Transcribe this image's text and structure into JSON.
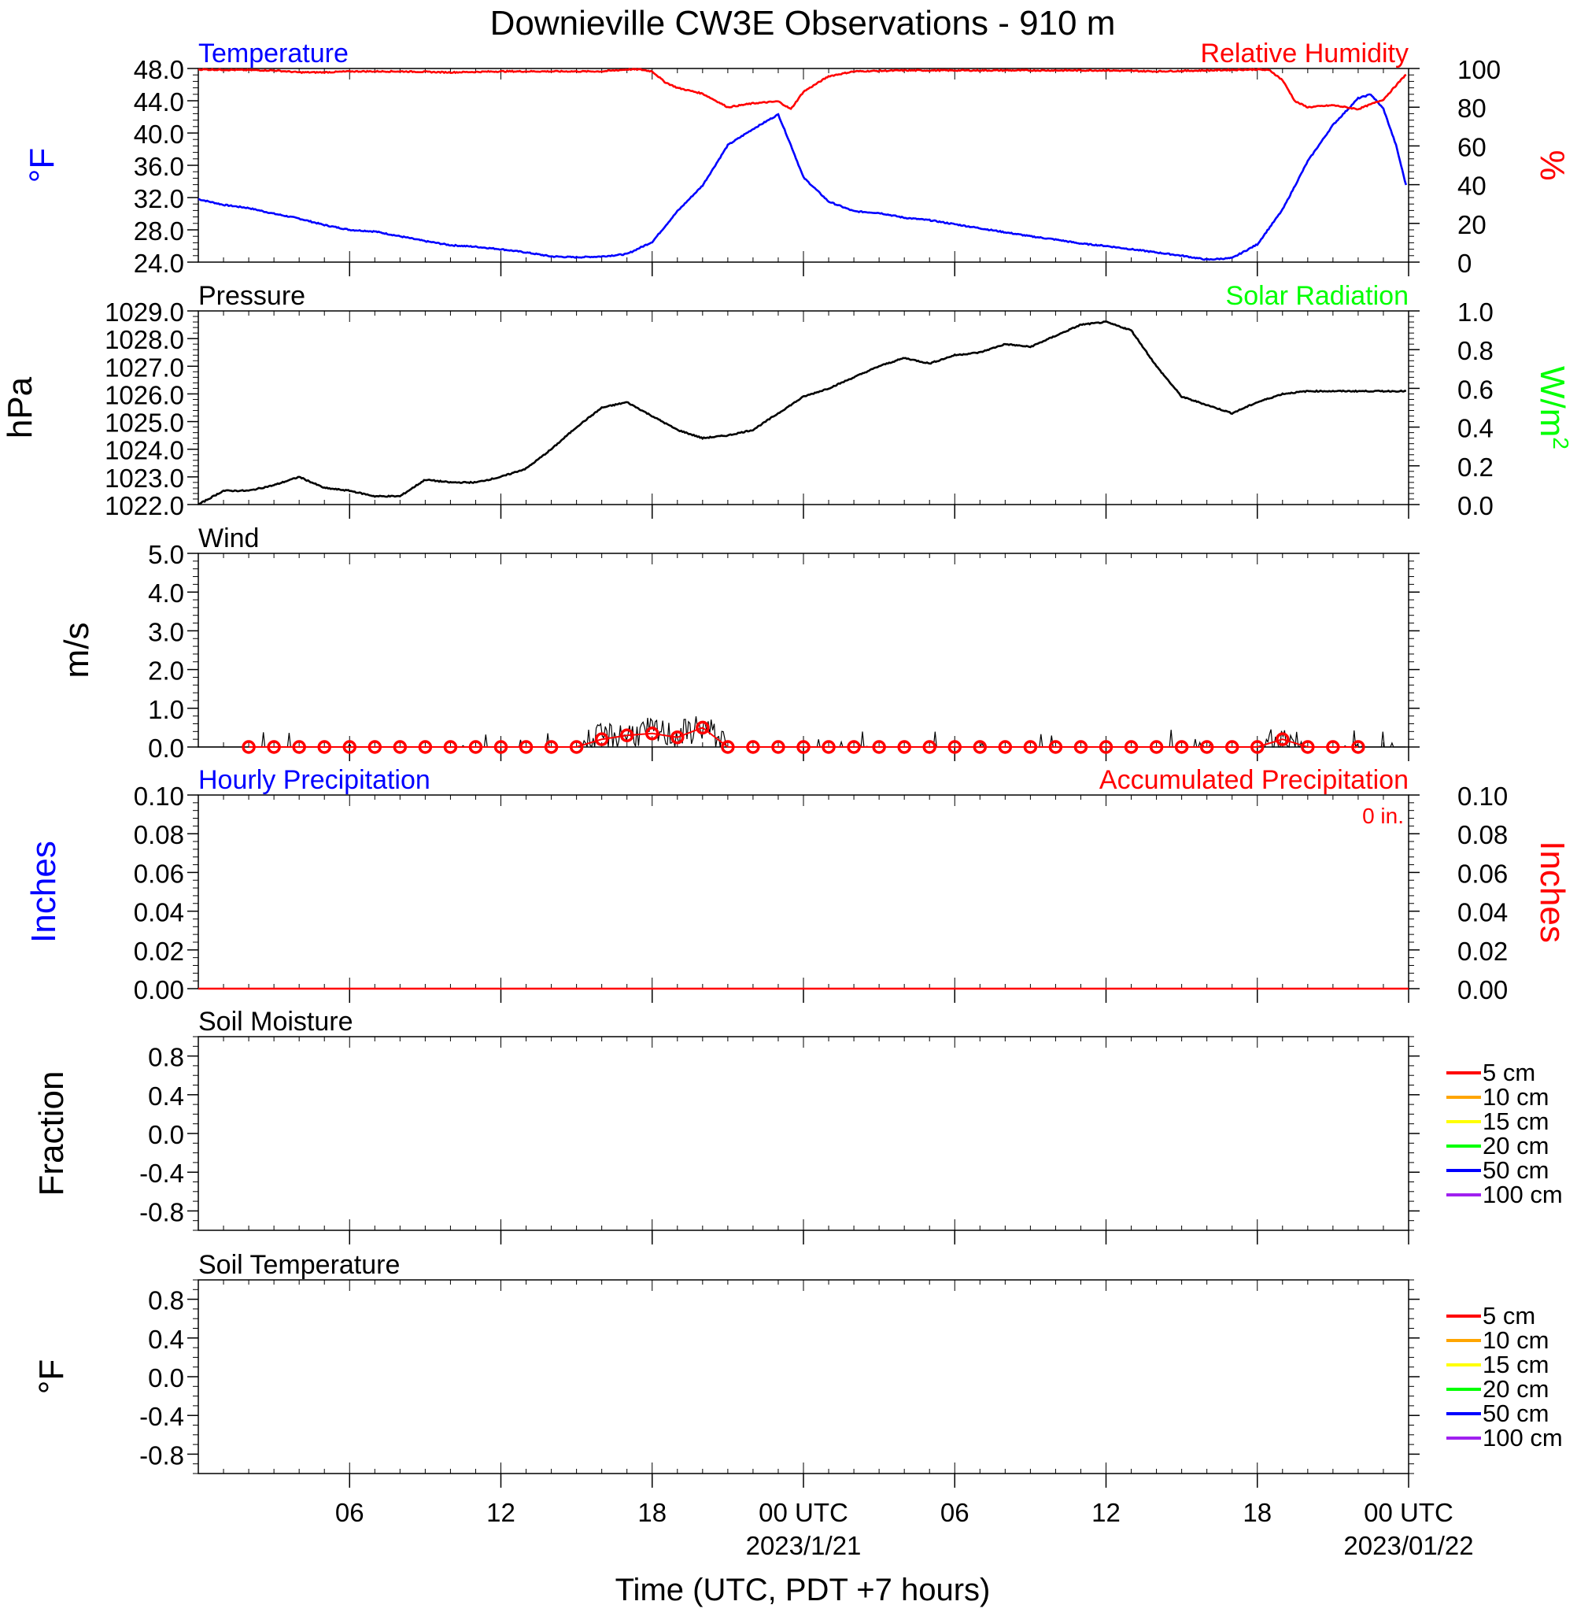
{
  "title": "Downieville CW3E Observations - 910 m",
  "xlabel": "Time (UTC, PDT +7 hours)",
  "x_ticks": [
    {
      "hour": 6,
      "label": "06",
      "sub": ""
    },
    {
      "hour": 12,
      "label": "12",
      "sub": ""
    },
    {
      "hour": 18,
      "label": "18",
      "sub": ""
    },
    {
      "hour": 24,
      "label": "00 UTC",
      "sub": "2023/1/21"
    },
    {
      "hour": 30,
      "label": "06",
      "sub": ""
    },
    {
      "hour": 36,
      "label": "12",
      "sub": ""
    },
    {
      "hour": 42,
      "label": "18",
      "sub": ""
    },
    {
      "hour": 48,
      "label": "00 UTC",
      "sub": "2023/01/22"
    }
  ],
  "colors": {
    "temperature": "#0000ff",
    "humidity": "#ff0000",
    "solar": "#00ff00",
    "black": "#000000",
    "soil": [
      "#ff0000",
      "#ffa500",
      "#ffff00",
      "#00ff00",
      "#0000ff",
      "#a020f0"
    ]
  },
  "chart_data": [
    {
      "type": "line",
      "left_title": "Temperature",
      "right_title": "Relative Humidity",
      "ylabel": "°F",
      "ylabel2": "%",
      "ylim": [
        24,
        48
      ],
      "yticks": [
        "24.0",
        "28.0",
        "32.0",
        "36.0",
        "40.0",
        "44.0",
        "48.0"
      ],
      "ylim2": [
        0,
        100
      ],
      "yticks2": [
        "0",
        "20",
        "40",
        "60",
        "80",
        "100"
      ],
      "series": [
        {
          "name": "Temperature",
          "axis": "left",
          "x": [
            0,
            1,
            2,
            3,
            4,
            5,
            6,
            7,
            8,
            9,
            10,
            11,
            12,
            13,
            14,
            15,
            16,
            17,
            18,
            19,
            20,
            21,
            22,
            23,
            23.5,
            24,
            25,
            26,
            27,
            28,
            29,
            30,
            31,
            32,
            33,
            34,
            35,
            36,
            37,
            38,
            39,
            40,
            41,
            42,
            43,
            44,
            45,
            46,
            46.5,
            47,
            47.5,
            47.9
          ],
          "y": [
            31.8,
            31.1,
            30.7,
            30.0,
            29.4,
            28.6,
            28.0,
            27.8,
            27.2,
            26.6,
            26.1,
            25.9,
            25.6,
            25.2,
            24.7,
            24.6,
            24.7,
            25.0,
            26.5,
            30.3,
            33.5,
            38.5,
            40.5,
            42.3,
            38.5,
            34.5,
            31.5,
            30.3,
            30.1,
            29.5,
            29.2,
            28.7,
            28.2,
            27.7,
            27.2,
            26.8,
            26.3,
            26.0,
            25.6,
            25.2,
            24.8,
            24.3,
            24.5,
            26.2,
            30.5,
            36.5,
            41.0,
            44.3,
            44.8,
            43.0,
            38.5,
            33.5
          ]
        },
        {
          "name": "Relative Humidity",
          "axis": "right",
          "x": [
            0,
            3,
            4,
            5,
            6,
            8,
            10,
            12,
            14,
            16,
            17,
            17.5,
            18,
            18.5,
            19,
            20,
            21,
            22,
            23,
            23.5,
            24,
            25,
            26,
            28,
            30,
            32,
            34,
            36,
            38,
            40,
            42,
            42.5,
            43,
            43.5,
            44,
            45,
            46,
            47,
            47.9
          ],
          "y": [
            99.5,
            99,
            98,
            98,
            98.5,
            98.5,
            98,
            98.5,
            98.5,
            98.5,
            99.5,
            99.5,
            98.5,
            93,
            90,
            87,
            80,
            82,
            83,
            79,
            88,
            96,
            98.5,
            99,
            99,
            99,
            99,
            99,
            98.5,
            99,
            99.5,
            99,
            94,
            83,
            80,
            81,
            79,
            84,
            97
          ]
        }
      ]
    },
    {
      "type": "line",
      "left_title": "Pressure",
      "right_title": "Solar Radiation",
      "ylabel": "hPa",
      "ylabel2": "W/m",
      "ylabel2_sup": "2",
      "ylim": [
        1022,
        1029
      ],
      "yticks": [
        "1022.0",
        "1023.0",
        "1024.0",
        "1025.0",
        "1026.0",
        "1027.0",
        "1028.0",
        "1029.0"
      ],
      "ylim2": [
        0,
        1
      ],
      "yticks2": [
        "0.0",
        "0.2",
        "0.4",
        "0.6",
        "0.8",
        "1.0"
      ],
      "series": [
        {
          "name": "Pressure",
          "axis": "left",
          "x": [
            0,
            1,
            2,
            3,
            4,
            5,
            6,
            7,
            8,
            9,
            10,
            11,
            12,
            13,
            14,
            15,
            16,
            17,
            18,
            19,
            20,
            21,
            22,
            23,
            24,
            25,
            26,
            27,
            28,
            29,
            30,
            31,
            32,
            33,
            34,
            35,
            36,
            37,
            38,
            39,
            40,
            41,
            42,
            43,
            44,
            45,
            46,
            47,
            47.9
          ],
          "y": [
            1022.0,
            1022.5,
            1022.5,
            1022.7,
            1023.0,
            1022.6,
            1022.5,
            1022.3,
            1022.3,
            1022.9,
            1022.8,
            1022.8,
            1023.0,
            1023.3,
            1024.0,
            1024.8,
            1025.5,
            1025.7,
            1025.2,
            1024.7,
            1024.4,
            1024.5,
            1024.7,
            1025.3,
            1025.9,
            1026.2,
            1026.6,
            1027.0,
            1027.3,
            1027.1,
            1027.4,
            1027.5,
            1027.8,
            1027.7,
            1028.1,
            1028.5,
            1028.6,
            1028.3,
            1027.0,
            1025.9,
            1025.6,
            1025.3,
            1025.7,
            1026.0,
            1026.1,
            1026.1,
            1026.1,
            1026.1,
            1026.1
          ]
        }
      ]
    },
    {
      "type": "line",
      "left_title": "Wind",
      "ylabel": "m/s",
      "ylim": [
        0,
        5
      ],
      "yticks": [
        "0.0",
        "1.0",
        "2.0",
        "3.0",
        "4.0",
        "5.0"
      ],
      "series": [
        {
          "name": "Wind (hourly)",
          "axis": "left",
          "marker": "circle",
          "x": [
            2,
            3,
            4,
            5,
            6,
            7,
            8,
            9,
            10,
            11,
            12,
            13,
            14,
            15,
            16,
            17,
            18,
            19,
            20,
            21,
            22,
            23,
            24,
            25,
            26,
            27,
            28,
            29,
            30,
            31,
            32,
            33,
            34,
            35,
            36,
            37,
            38,
            39,
            40,
            41,
            42,
            43,
            44,
            45,
            46
          ],
          "y": [
            0,
            0,
            0,
            0,
            0,
            0,
            0,
            0,
            0,
            0,
            0,
            0,
            0,
            0,
            0.2,
            0.3,
            0.35,
            0.25,
            0.5,
            0,
            0,
            0,
            0,
            0,
            0,
            0,
            0,
            0,
            0,
            0,
            0,
            0,
            0,
            0,
            0,
            0,
            0,
            0,
            0,
            0,
            0,
            0.2,
            0,
            0,
            0
          ]
        }
      ]
    },
    {
      "type": "line",
      "left_title": "Hourly Precipitation",
      "right_title": "Accumulated Precipitation",
      "annotation": "0 in.",
      "ylabel": "Inches",
      "ylabel2": "Inches",
      "ylim": [
        0,
        0.1
      ],
      "yticks": [
        "0.00",
        "0.02",
        "0.04",
        "0.06",
        "0.08",
        "0.10"
      ],
      "ylim2": [
        0,
        0.1
      ],
      "yticks2": [
        "0.00",
        "0.02",
        "0.04",
        "0.06",
        "0.08",
        "0.10"
      ],
      "series": [
        {
          "name": "Accumulated Precipitation",
          "axis": "right",
          "x": [
            0,
            48
          ],
          "y": [
            0,
            0
          ]
        }
      ]
    },
    {
      "type": "line",
      "left_title": "Soil Moisture",
      "ylabel": "Fraction",
      "ylim": [
        -1,
        1
      ],
      "yticks": [
        "-0.8",
        "-0.4",
        "0.0",
        "0.4",
        "0.8"
      ],
      "legend": [
        "5 cm",
        "10 cm",
        "15 cm",
        "20 cm",
        "50 cm",
        "100 cm"
      ],
      "legend_loc": "right",
      "series": []
    },
    {
      "type": "line",
      "left_title": "Soil Temperature",
      "ylabel": "°F",
      "ylim": [
        -1,
        1
      ],
      "yticks": [
        "-0.8",
        "-0.4",
        "0.0",
        "0.4",
        "0.8"
      ],
      "legend": [
        "5 cm",
        "10 cm",
        "15 cm",
        "20 cm",
        "50 cm",
        "100 cm"
      ],
      "legend_loc": "right",
      "series": []
    }
  ]
}
